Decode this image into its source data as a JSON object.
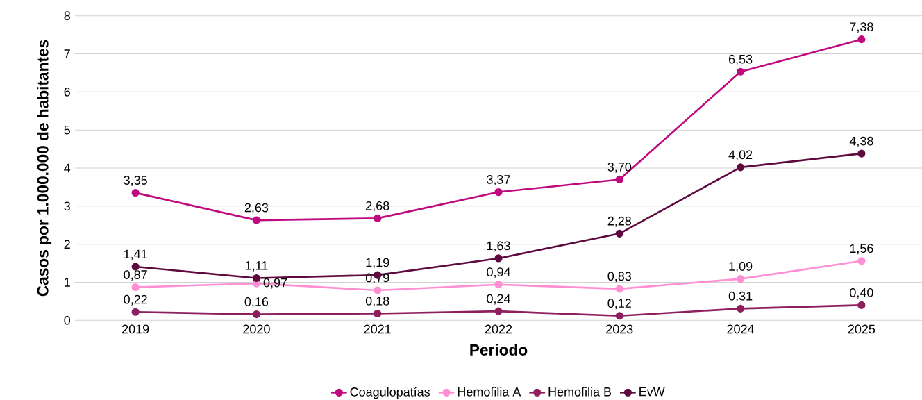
{
  "chart_data": {
    "type": "line",
    "xlabel": "Periodo",
    "ylabel": "Casos por 1.000.000 de habitantes",
    "categories": [
      "2019",
      "2020",
      "2021",
      "2022",
      "2023",
      "2024",
      "2025"
    ],
    "ylim": [
      0,
      8
    ],
    "yticks": [
      0,
      1,
      2,
      3,
      4,
      5,
      6,
      7,
      8
    ],
    "grid": "y",
    "legend": "bottom",
    "marker": "circle",
    "line_style": "solid",
    "series": [
      {
        "name": "Coagulopatías",
        "color": "#c0087f",
        "values": [
          3.35,
          2.63,
          2.68,
          3.37,
          3.7,
          6.53,
          7.38
        ],
        "value_labels": [
          "3,35",
          "2,63",
          "2,68",
          "3,37",
          "3,70",
          "6,53",
          "7,38"
        ]
      },
      {
        "name": "Hemofilia A",
        "color": "#ff8fd4",
        "values": [
          0.87,
          0.97,
          0.79,
          0.94,
          0.83,
          1.09,
          1.56
        ],
        "value_labels": [
          "0,87",
          "0,97",
          "0,79",
          "0,94",
          "0,83",
          "1,09",
          "1,56"
        ]
      },
      {
        "name": "Hemofilia B",
        "color": "#8e1f5e",
        "values": [
          0.22,
          0.16,
          0.18,
          0.24,
          0.12,
          0.31,
          0.4
        ],
        "value_labels": [
          "0,22",
          "0,16",
          "0,18",
          "0,24",
          "0,12",
          "0,31",
          "0,40"
        ]
      },
      {
        "name": "EvW",
        "color": "#5e0a3e",
        "values": [
          1.41,
          1.11,
          1.19,
          1.63,
          2.28,
          4.02,
          4.38
        ],
        "value_labels": [
          "1,41",
          "1,11",
          "1,19",
          "1,63",
          "2,28",
          "4,02",
          "4,38"
        ]
      }
    ]
  }
}
